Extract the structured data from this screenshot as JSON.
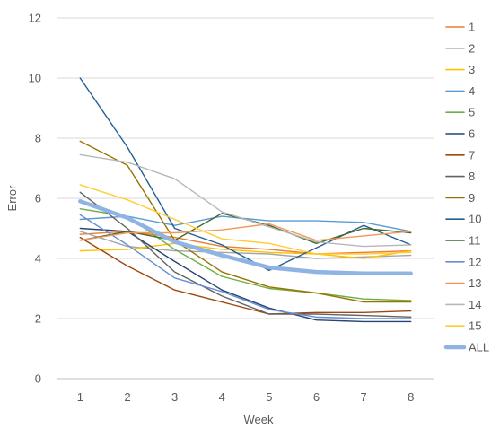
{
  "chart_data": {
    "type": "line",
    "xlabel": "Week",
    "ylabel": "Error",
    "x": [
      1,
      2,
      3,
      4,
      5,
      6,
      7,
      8
    ],
    "ylim": [
      0,
      12
    ],
    "yticks": [
      0,
      2,
      4,
      6,
      8,
      10,
      12
    ],
    "grid": "horizontal",
    "legend": "right",
    "series": [
      {
        "name": "1",
        "color": "#ED7D31",
        "width": 1.4,
        "values": [
          4.8,
          4.9,
          4.7,
          4.4,
          4.3,
          4.15,
          4.2,
          4.25
        ]
      },
      {
        "name": "2",
        "color": "#A5A5A5",
        "width": 1.4,
        "values": [
          4.9,
          4.4,
          4.25,
          4.2,
          4.15,
          4.0,
          4.05,
          4.1
        ]
      },
      {
        "name": "3",
        "color": "#FFC000",
        "width": 1.4,
        "values": [
          4.25,
          4.3,
          4.5,
          4.3,
          4.2,
          4.15,
          4.0,
          4.25
        ]
      },
      {
        "name": "4",
        "color": "#5B9BD5",
        "width": 1.4,
        "values": [
          5.3,
          5.4,
          5.1,
          5.4,
          5.25,
          5.25,
          5.2,
          4.9
        ]
      },
      {
        "name": "5",
        "color": "#70AD47",
        "width": 1.4,
        "values": [
          5.65,
          5.4,
          4.3,
          3.4,
          3.0,
          2.85,
          2.65,
          2.6
        ]
      },
      {
        "name": "6",
        "color": "#264478",
        "width": 1.4,
        "values": [
          5.0,
          4.9,
          3.9,
          2.95,
          2.35,
          1.95,
          1.9,
          1.9
        ]
      },
      {
        "name": "7",
        "color": "#9E480E",
        "width": 1.4,
        "values": [
          4.7,
          3.75,
          2.95,
          2.55,
          2.15,
          2.2,
          2.2,
          2.25
        ]
      },
      {
        "name": "8",
        "color": "#636363",
        "width": 1.4,
        "values": [
          6.2,
          5.0,
          3.55,
          2.75,
          2.15,
          2.15,
          2.1,
          2.05
        ]
      },
      {
        "name": "9",
        "color": "#997300",
        "width": 1.4,
        "values": [
          7.9,
          7.1,
          4.6,
          3.55,
          3.05,
          2.85,
          2.55,
          2.55
        ]
      },
      {
        "name": "10",
        "color": "#255E91",
        "width": 1.4,
        "values": [
          10.0,
          7.7,
          5.0,
          4.45,
          3.6,
          4.35,
          5.1,
          4.45
        ]
      },
      {
        "name": "11",
        "color": "#43682B",
        "width": 1.4,
        "values": [
          4.6,
          4.9,
          4.6,
          5.5,
          5.1,
          4.5,
          5.0,
          4.85
        ]
      },
      {
        "name": "12",
        "color": "#698ED0",
        "width": 1.4,
        "values": [
          5.45,
          4.45,
          3.35,
          2.9,
          2.3,
          2.05,
          2.0,
          2.0
        ]
      },
      {
        "name": "13",
        "color": "#F1975A",
        "width": 1.4,
        "values": [
          4.6,
          4.85,
          4.85,
          4.95,
          5.15,
          4.6,
          4.75,
          4.9
        ]
      },
      {
        "name": "14",
        "color": "#B7B7B7",
        "width": 1.4,
        "values": [
          7.45,
          7.2,
          6.65,
          5.55,
          5.05,
          4.55,
          4.4,
          4.45
        ]
      },
      {
        "name": "15",
        "color": "#FFCD33",
        "width": 1.4,
        "values": [
          6.45,
          5.95,
          5.3,
          4.65,
          4.5,
          4.15,
          4.15,
          4.2
        ]
      },
      {
        "name": "ALL",
        "color": "#8FB4E3",
        "width": 4.5,
        "values": [
          5.9,
          5.35,
          4.55,
          4.1,
          3.7,
          3.55,
          3.5,
          3.5
        ]
      }
    ]
  }
}
